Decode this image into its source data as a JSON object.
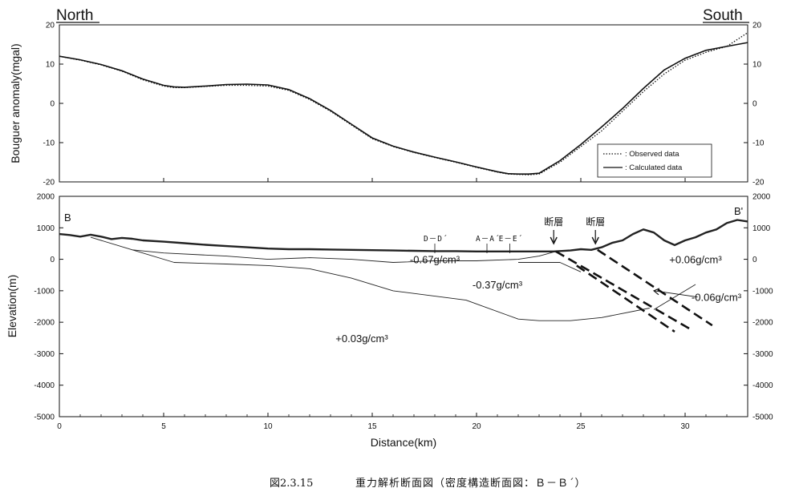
{
  "chart_data": [
    {
      "type": "line",
      "panel": "top",
      "ylabel": "Bouguer anomaly(mgal)",
      "ylim": [
        -20,
        20
      ],
      "xlim": [
        0,
        33
      ],
      "yticks": [
        "20",
        "10",
        "0",
        "-10",
        "-20"
      ],
      "direction_left": "North",
      "direction_right": "South",
      "legend": {
        "placement": "bottom-right",
        "observed_label": ": Observed data",
        "calculated_label": ": Calculated data"
      },
      "series": [
        {
          "name": ": Observed data",
          "style": "dotted",
          "x": [
            0,
            1,
            2,
            3,
            4,
            5,
            5.5,
            6,
            7,
            8,
            9,
            10,
            11,
            12,
            13,
            14,
            15,
            16,
            17,
            18,
            19,
            20,
            21,
            21.5,
            22,
            22.5,
            23,
            24,
            25,
            26,
            27,
            28,
            29,
            30,
            31,
            32,
            33
          ],
          "y": [
            12,
            11,
            9.8,
            8.2,
            6,
            4.4,
            4,
            4,
            4.3,
            4.6,
            4.6,
            4.4,
            3.3,
            1,
            -2,
            -5.5,
            -9,
            -11,
            -12.5,
            -13.8,
            -15,
            -16.3,
            -17.5,
            -18,
            -18.1,
            -18.2,
            -18,
            -15,
            -11,
            -7,
            -2,
            3,
            7.5,
            11,
            13,
            14.5,
            18
          ]
        },
        {
          "name": ": Calculated data",
          "style": "solid",
          "x": [
            0,
            1,
            2,
            3,
            4,
            5,
            5.5,
            6,
            7,
            8,
            9,
            10,
            11,
            12,
            13,
            14,
            15,
            16,
            17,
            18,
            19,
            20,
            21,
            21.5,
            22,
            22.5,
            23,
            24,
            25,
            26,
            27,
            28,
            29,
            30,
            31,
            32,
            33
          ],
          "y": [
            12,
            11.1,
            9.9,
            8.3,
            6.2,
            4.6,
            4.2,
            4.1,
            4.4,
            4.8,
            4.9,
            4.7,
            3.5,
            1.2,
            -1.8,
            -5.3,
            -8.8,
            -10.9,
            -12.4,
            -13.7,
            -14.9,
            -16.2,
            -17.4,
            -17.9,
            -18,
            -18,
            -17.8,
            -14.6,
            -10.5,
            -6,
            -1.3,
            3.8,
            8.5,
            11.5,
            13.5,
            14.5,
            15.5
          ]
        }
      ]
    },
    {
      "type": "line",
      "panel": "bottom",
      "xlabel": "Distance(km)",
      "ylabel": "Elevation(m)",
      "xlim": [
        0,
        33
      ],
      "ylim": [
        -5000,
        2000
      ],
      "xticks": [
        "0",
        "5",
        "10",
        "15",
        "20",
        "25",
        "30"
      ],
      "yticks": [
        "2000",
        "1000",
        "0",
        "-1000",
        "-2000",
        "-3000",
        "-4000",
        "-5000"
      ],
      "end_left": "B",
      "end_right": "B'",
      "fault_label": "断層",
      "fault_arrows_x_km": [
        23.7,
        25.7
      ],
      "section_marks": [
        {
          "label": "D－D´",
          "x": 18
        },
        {
          "label": "A－A´",
          "x": 20.5
        },
        {
          "label": "E－E´",
          "x": 21.6
        }
      ],
      "density_labels": [
        {
          "text": "-0.67g/cm³",
          "x": 18,
          "y": 0
        },
        {
          "text": "-0.37g/cm³",
          "x": 21,
          "y": -800
        },
        {
          "text": "+0.03g/cm³",
          "x": 14.5,
          "y": -2500
        },
        {
          "text": "+0.06g/cm³",
          "x": 30.5,
          "y": 0
        },
        {
          "text": "-0.06g/cm³",
          "x": 31.5,
          "y": -1200
        }
      ],
      "series": [
        {
          "name": "topography",
          "style": "thick",
          "x": [
            0,
            0.5,
            1,
            1.5,
            2,
            2.5,
            3,
            3.5,
            4,
            5,
            6,
            7,
            8,
            9,
            10,
            11,
            12,
            13,
            14,
            15,
            16,
            17,
            18,
            19,
            20,
            21,
            22,
            23,
            23.7,
            24.5,
            25,
            25.5,
            26,
            26.5,
            27,
            27.5,
            28,
            28.5,
            29,
            29.5,
            30,
            30.5,
            31,
            31.5,
            32,
            32.5,
            33
          ],
          "y": [
            800,
            770,
            720,
            780,
            720,
            640,
            680,
            650,
            600,
            560,
            510,
            460,
            420,
            380,
            340,
            320,
            320,
            310,
            300,
            290,
            280,
            270,
            260,
            260,
            250,
            250,
            250,
            250,
            250,
            280,
            320,
            300,
            380,
            520,
            600,
            800,
            950,
            850,
            600,
            450,
            600,
            700,
            850,
            950,
            1150,
            1250,
            1200
          ]
        },
        {
          "name": "-0.67 layer base",
          "style": "thin",
          "x": [
            1.5,
            3.5,
            5,
            8,
            10,
            12,
            14,
            16,
            18,
            20,
            22,
            23,
            23.8
          ],
          "y": [
            700,
            300,
            200,
            100,
            0,
            50,
            0,
            -100,
            -50,
            -50,
            0,
            100,
            250
          ]
        },
        {
          "name": "-0.37 layer base",
          "style": "thin",
          "x": [
            3.5,
            5.5,
            8,
            10,
            12,
            14,
            16,
            19.5,
            22,
            23,
            24.5,
            26,
            28.3
          ],
          "y": [
            300,
            -100,
            -150,
            -200,
            -300,
            -600,
            -1000,
            -1300,
            -1900,
            -1950,
            -1950,
            -1850,
            -1550
          ]
        },
        {
          "name": "-0.37 layer right edge",
          "style": "thin",
          "x": [
            22,
            24,
            25
          ],
          "y": [
            -100,
            -100,
            -400
          ]
        },
        {
          "name": "arrow line",
          "style": "thin",
          "x": [
            28.5,
            30.5
          ],
          "y": [
            -1600,
            -800
          ]
        }
      ],
      "faults": [
        {
          "name": "fault 1",
          "style": "dashed",
          "x": [
            23.8,
            30.2
          ],
          "y": [
            250,
            -2200
          ]
        },
        {
          "name": "fault 2",
          "style": "dashed",
          "x": [
            25.8,
            31.3
          ],
          "y": [
            300,
            -2100
          ]
        },
        {
          "name": "fault inner",
          "style": "dashed",
          "x": [
            24.8,
            29.5
          ],
          "y": [
            -200,
            -2300
          ]
        }
      ]
    }
  ],
  "caption": {
    "number": "図2.3.15",
    "title": "重力解析断面図（密度構造断面図：Ｂ－Ｂ´）"
  }
}
